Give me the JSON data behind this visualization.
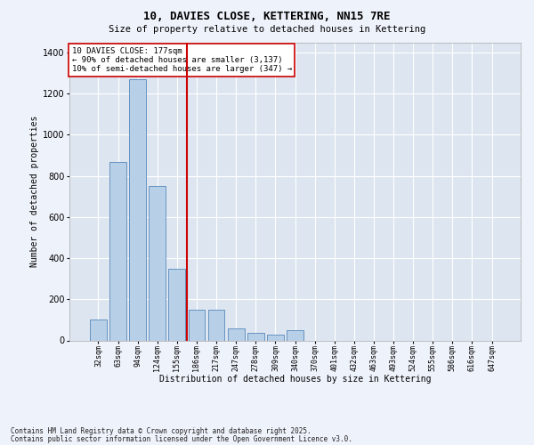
{
  "title": "10, DAVIES CLOSE, KETTERING, NN15 7RE",
  "subtitle": "Size of property relative to detached houses in Kettering",
  "xlabel": "Distribution of detached houses by size in Kettering",
  "ylabel": "Number of detached properties",
  "categories": [
    "32sqm",
    "63sqm",
    "94sqm",
    "124sqm",
    "155sqm",
    "186sqm",
    "217sqm",
    "247sqm",
    "278sqm",
    "309sqm",
    "340sqm",
    "370sqm",
    "401sqm",
    "432sqm",
    "463sqm",
    "493sqm",
    "524sqm",
    "555sqm",
    "586sqm",
    "616sqm",
    "647sqm"
  ],
  "values": [
    100,
    870,
    1270,
    750,
    350,
    150,
    150,
    60,
    35,
    30,
    50,
    0,
    0,
    0,
    0,
    0,
    0,
    0,
    0,
    0,
    0
  ],
  "bar_color": "#b8cfe8",
  "bar_edge_color": "#5588bb",
  "background_color": "#dde6f0",
  "grid_color": "#ffffff",
  "vline_color": "#cc0000",
  "vline_x": 4.5,
  "annotation_text": "10 DAVIES CLOSE: 177sqm\n← 90% of detached houses are smaller (3,137)\n10% of semi-detached houses are larger (347) →",
  "annotation_box_edgecolor": "#cc0000",
  "ylim": [
    0,
    1450
  ],
  "yticks": [
    0,
    200,
    400,
    600,
    800,
    1000,
    1200,
    1400
  ],
  "footnote1": "Contains HM Land Registry data © Crown copyright and database right 2025.",
  "footnote2": "Contains public sector information licensed under the Open Government Licence v3.0.",
  "title_fontsize": 9,
  "subtitle_fontsize": 7.5
}
